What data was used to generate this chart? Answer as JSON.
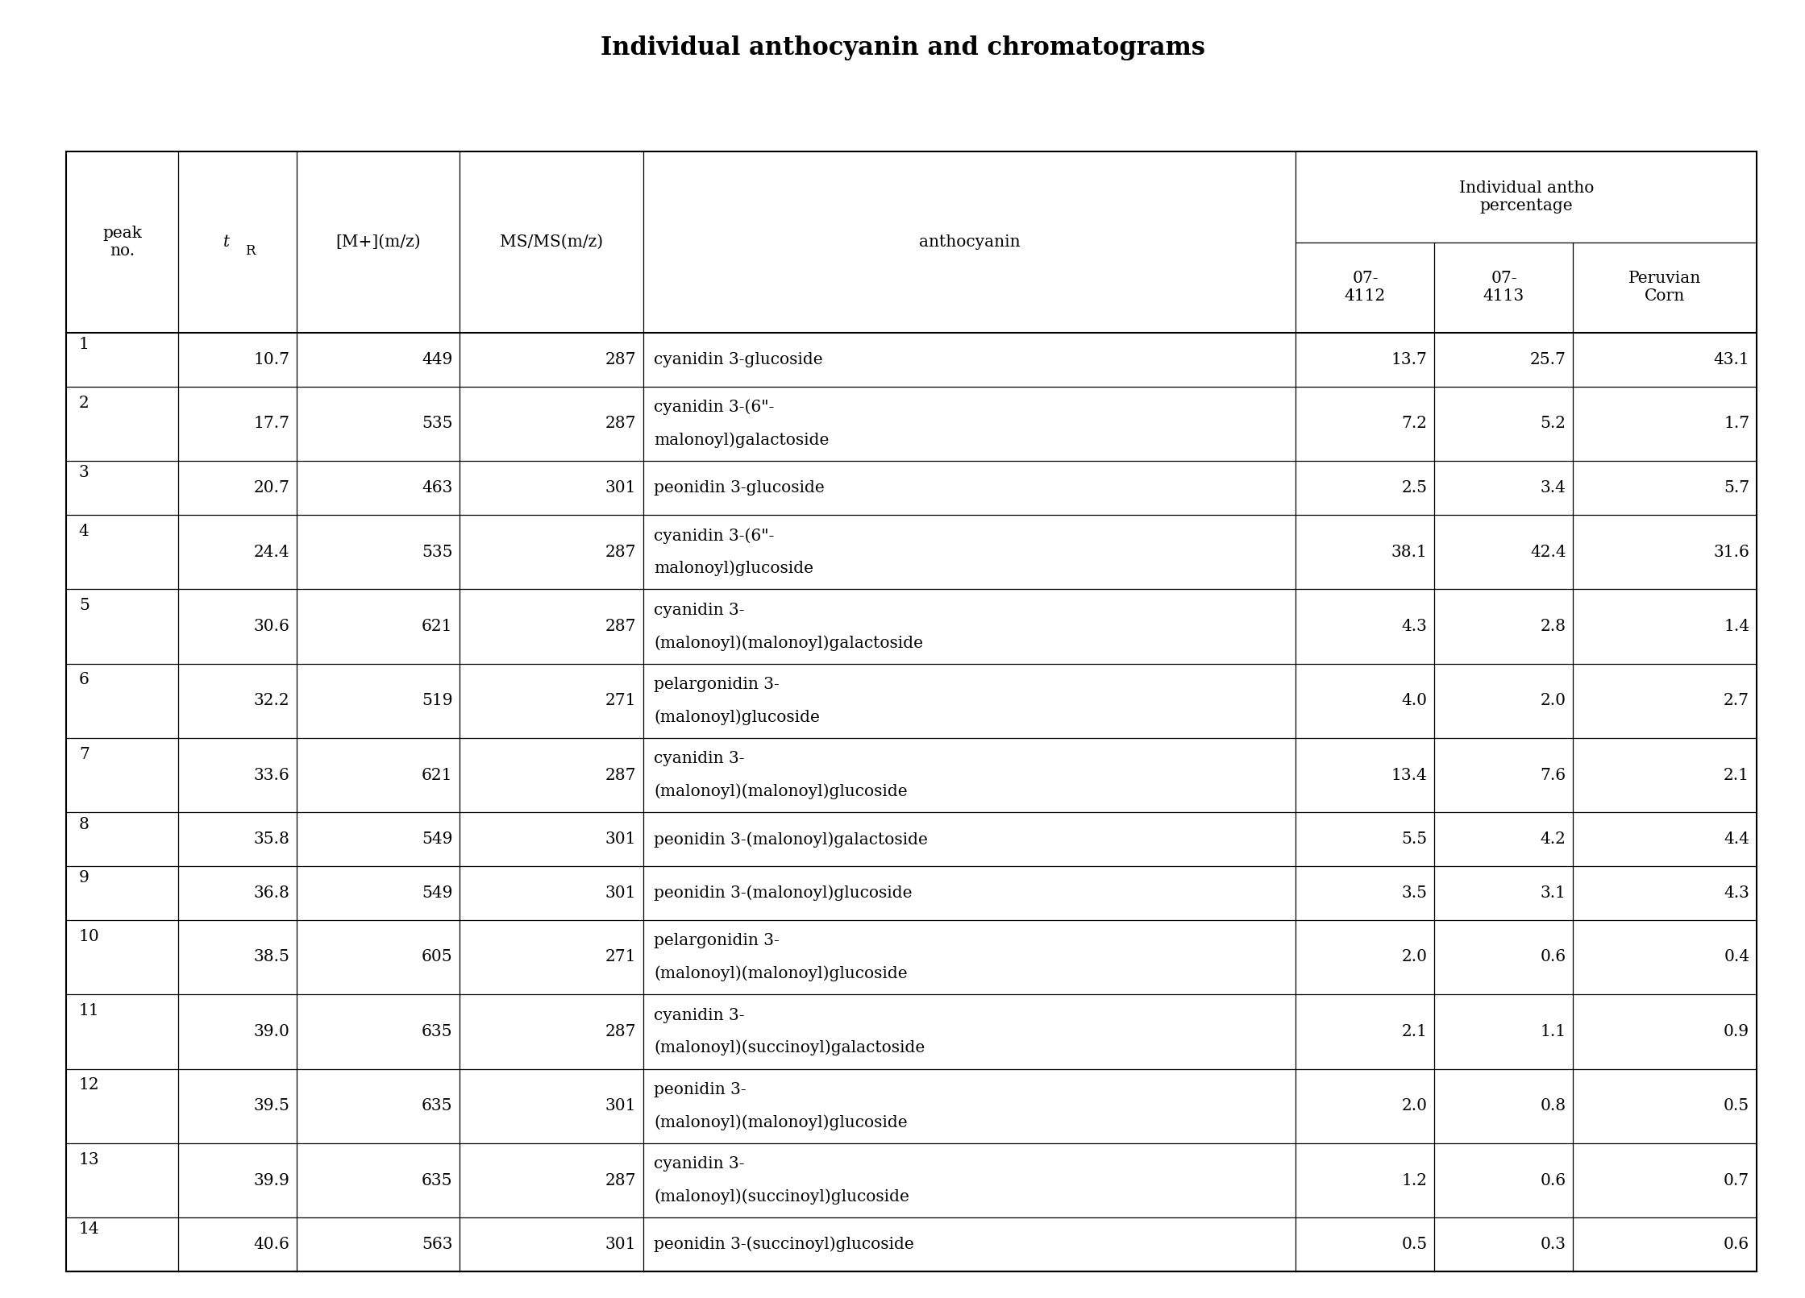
{
  "title": "Individual anthocyanin and chromatograms",
  "rows": [
    {
      "peak": "1",
      "tR": "10.7",
      "mz": "449",
      "msms": "287",
      "anthocyanin_line1": "cyanidin 3-glucoside",
      "anthocyanin_line2": "",
      "v4112": "13.7",
      "v4113": "25.7",
      "corn": "43.1"
    },
    {
      "peak": "2",
      "tR": "17.7",
      "mz": "535",
      "msms": "287",
      "anthocyanin_line1": "cyanidin 3-(6\"-",
      "anthocyanin_line2": "malonoyl)galactoside",
      "v4112": "7.2",
      "v4113": "5.2",
      "corn": "1.7"
    },
    {
      "peak": "3",
      "tR": "20.7",
      "mz": "463",
      "msms": "301",
      "anthocyanin_line1": "peonidin 3-glucoside",
      "anthocyanin_line2": "",
      "v4112": "2.5",
      "v4113": "3.4",
      "corn": "5.7"
    },
    {
      "peak": "4",
      "tR": "24.4",
      "mz": "535",
      "msms": "287",
      "anthocyanin_line1": "cyanidin 3-(6\"-",
      "anthocyanin_line2": "malonoyl)glucoside",
      "v4112": "38.1",
      "v4113": "42.4",
      "corn": "31.6"
    },
    {
      "peak": "5",
      "tR": "30.6",
      "mz": "621",
      "msms": "287",
      "anthocyanin_line1": "cyanidin 3-",
      "anthocyanin_line2": "(malonoyl)(malonoyl)galactoside",
      "v4112": "4.3",
      "v4113": "2.8",
      "corn": "1.4"
    },
    {
      "peak": "6",
      "tR": "32.2",
      "mz": "519",
      "msms": "271",
      "anthocyanin_line1": "pelargonidin 3-",
      "anthocyanin_line2": "(malonoyl)glucoside",
      "v4112": "4.0",
      "v4113": "2.0",
      "corn": "2.7"
    },
    {
      "peak": "7",
      "tR": "33.6",
      "mz": "621",
      "msms": "287",
      "anthocyanin_line1": "cyanidin 3-",
      "anthocyanin_line2": "(malonoyl)(malonoyl)glucoside",
      "v4112": "13.4",
      "v4113": "7.6",
      "corn": "2.1"
    },
    {
      "peak": "8",
      "tR": "35.8",
      "mz": "549",
      "msms": "301",
      "anthocyanin_line1": "peonidin 3-(malonoyl)galactoside",
      "anthocyanin_line2": "",
      "v4112": "5.5",
      "v4113": "4.2",
      "corn": "4.4"
    },
    {
      "peak": "9",
      "tR": "36.8",
      "mz": "549",
      "msms": "301",
      "anthocyanin_line1": "peonidin 3-(malonoyl)glucoside",
      "anthocyanin_line2": "",
      "v4112": "3.5",
      "v4113": "3.1",
      "corn": "4.3"
    },
    {
      "peak": "10",
      "tR": "38.5",
      "mz": "605",
      "msms": "271",
      "anthocyanin_line1": "pelargonidin 3-",
      "anthocyanin_line2": "(malonoyl)(malonoyl)glucoside",
      "v4112": "2.0",
      "v4113": "0.6",
      "corn": "0.4"
    },
    {
      "peak": "11",
      "tR": "39.0",
      "mz": "635",
      "msms": "287",
      "anthocyanin_line1": "cyanidin 3-",
      "anthocyanin_line2": "(malonoyl)(succinoyl)galactoside",
      "v4112": "2.1",
      "v4113": "1.1",
      "corn": "0.9"
    },
    {
      "peak": "12",
      "tR": "39.5",
      "mz": "635",
      "msms": "301",
      "anthocyanin_line1": "peonidin 3-",
      "anthocyanin_line2": "(malonoyl)(malonoyl)glucoside",
      "v4112": "2.0",
      "v4113": "0.8",
      "corn": "0.5"
    },
    {
      "peak": "13",
      "tR": "39.9",
      "mz": "635",
      "msms": "287",
      "anthocyanin_line1": "cyanidin 3-",
      "anthocyanin_line2": "(malonoyl)(succinoyl)glucoside",
      "v4112": "1.2",
      "v4113": "0.6",
      "corn": "0.7"
    },
    {
      "peak": "14",
      "tR": "40.6",
      "mz": "563",
      "msms": "301",
      "anthocyanin_line1": "peonidin 3-(succinoyl)glucoside",
      "anthocyanin_line2": "",
      "v4112": "0.5",
      "v4113": "0.3",
      "corn": "0.6"
    }
  ],
  "background_color": "#ffffff",
  "title_fontsize": 22,
  "cell_fontsize": 14.5
}
